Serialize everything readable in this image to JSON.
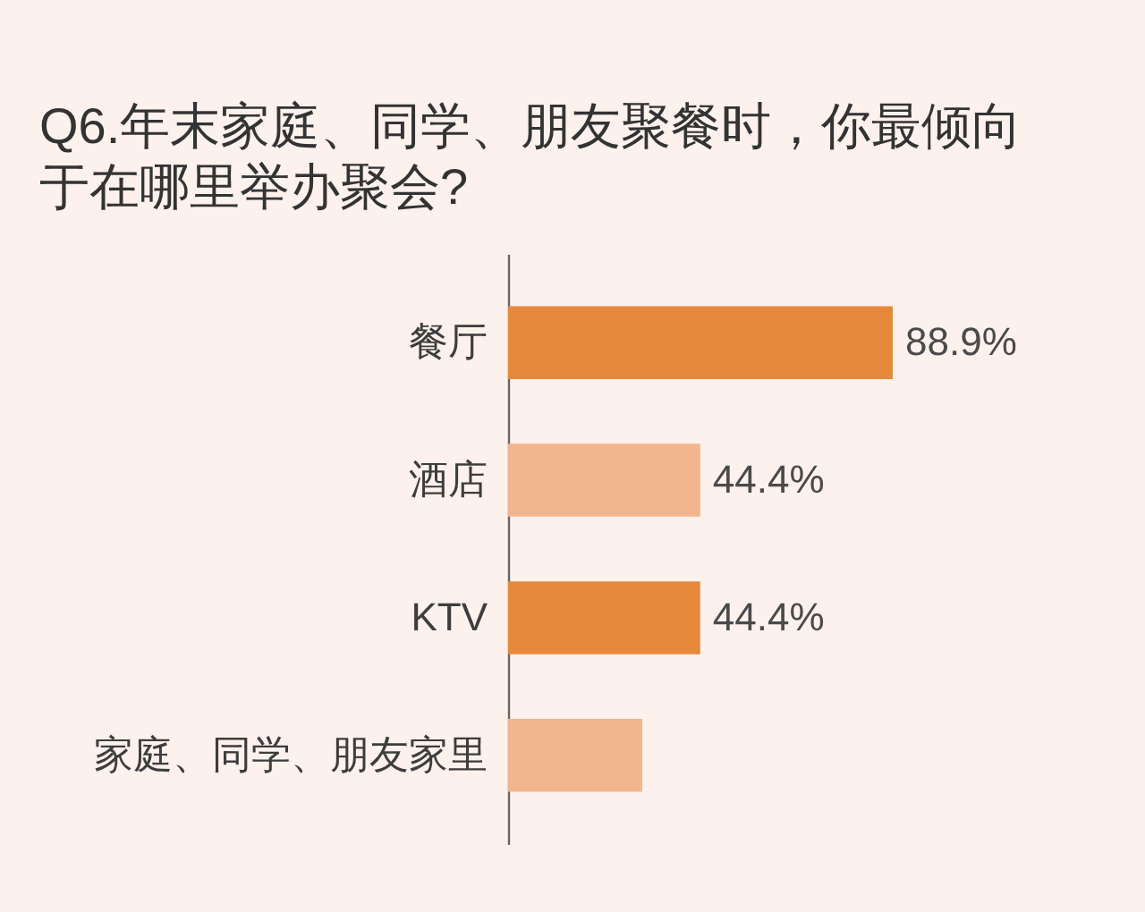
{
  "chart_data": {
    "type": "bar",
    "orientation": "horizontal",
    "title": "Q6.年末家庭、同学、朋友聚餐时，你最倾向于在哪里举办聚会?",
    "categories": [
      "餐厅",
      "酒店",
      "KTV",
      "家庭、同学、朋友家里"
    ],
    "values": [
      88.9,
      44.4,
      44.4,
      31
    ],
    "colors": [
      "#e6883a",
      "#f2b58d",
      "#e6883a",
      "#f2b58d"
    ],
    "value_labels": [
      "88.9%",
      "44.4%",
      "44.4%",
      null
    ],
    "tick_labels": "y",
    "grid": false
  }
}
